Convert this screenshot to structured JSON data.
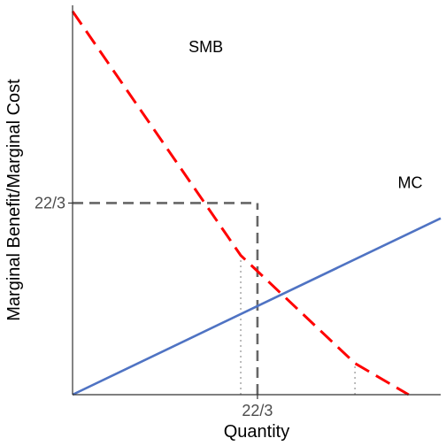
{
  "chart_data": {
    "type": "line",
    "title": "",
    "xlabel": "Quantity",
    "ylabel": "Marginal Benefit/Marginal Cost",
    "xlim": [
      0,
      14.6
    ],
    "ylim": [
      0,
      14.9
    ],
    "x_ticks": [
      {
        "value": 7.333,
        "label": "22/3"
      }
    ],
    "y_ticks": [
      {
        "value": 7.333,
        "label": "22/3"
      }
    ],
    "grid": false,
    "series": [
      {
        "name": "SMB",
        "style": "dashed",
        "color": "#ff0000",
        "points": [
          [
            0,
            14.67
          ],
          [
            6.67,
            5.33
          ],
          [
            11.2,
            1.2
          ],
          [
            13.33,
            0
          ]
        ]
      },
      {
        "name": "MC",
        "style": "solid",
        "color": "#4f73c3",
        "points": [
          [
            0,
            0
          ],
          [
            14.6,
            6.75
          ]
        ]
      }
    ],
    "reference_lines": [
      {
        "type": "dashed",
        "color": "#666666",
        "from": [
          0,
          7.333
        ],
        "to": [
          7.333,
          7.333
        ]
      },
      {
        "type": "dashed",
        "color": "#666666",
        "from": [
          7.333,
          0
        ],
        "to": [
          7.333,
          7.333
        ]
      },
      {
        "type": "dotted",
        "color": "#a6a6a6",
        "from": [
          6.67,
          0
        ],
        "to": [
          6.67,
          5.33
        ]
      },
      {
        "type": "dotted",
        "color": "#a6a6a6",
        "from": [
          11.2,
          0
        ],
        "to": [
          11.2,
          1.2
        ]
      }
    ],
    "annotations": [
      {
        "text": "SMB",
        "x": 4.6,
        "y": 13.1
      },
      {
        "text": "MC",
        "x": 12.9,
        "y": 7.9
      }
    ]
  }
}
